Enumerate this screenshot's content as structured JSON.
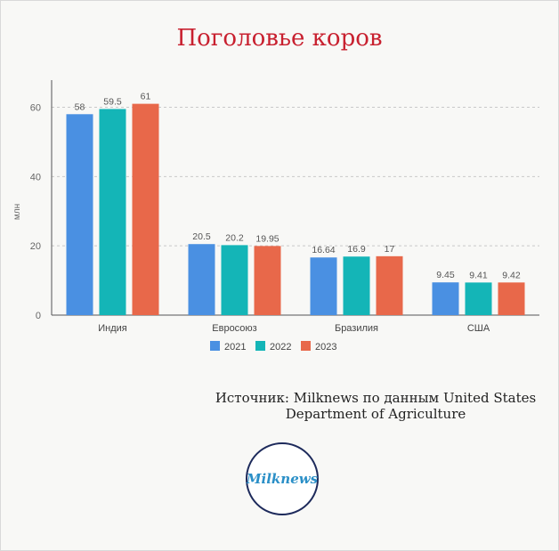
{
  "source": {
    "line1": "Источник: Milknews по данным United States",
    "line2": "Department of Agriculture"
  },
  "logo": {
    "text": "Milknews"
  },
  "colors": {
    "title": "#c8202f",
    "axis": "#666666",
    "grid": "#c9c9c9"
  },
  "chart_data": {
    "type": "bar",
    "title": "Поголовье коров",
    "xlabel": "",
    "ylabel": "млн",
    "ylim": [
      0,
      60
    ],
    "yticks": [
      0,
      20,
      40,
      60
    ],
    "grid": true,
    "legend_position": "bottom",
    "categories": [
      "Индия",
      "Евросоюз",
      "Бразилия",
      "США"
    ],
    "series": [
      {
        "name": "2021",
        "color": "#4a90e2",
        "values": [
          58,
          20.5,
          16.64,
          9.45
        ],
        "labels": [
          "58",
          "20.5",
          "16.64",
          "9.45"
        ]
      },
      {
        "name": "2022",
        "color": "#14b5b7",
        "values": [
          59.5,
          20.2,
          16.9,
          9.41
        ],
        "labels": [
          "59.5",
          "20.2",
          "16.9",
          "9.41"
        ]
      },
      {
        "name": "2023",
        "color": "#e8684a",
        "values": [
          61,
          19.95,
          17,
          9.42
        ],
        "labels": [
          "61",
          "19.95",
          "17",
          "9.42"
        ]
      }
    ]
  }
}
